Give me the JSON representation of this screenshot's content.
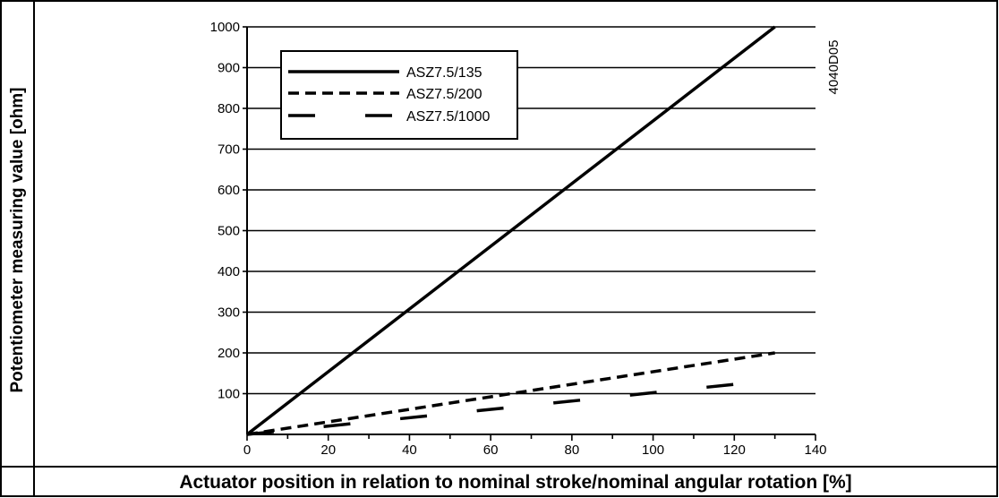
{
  "chart_data": {
    "type": "line",
    "title": "",
    "xlabel": "Actuator position in relation to nominal stroke/nominal angular rotation [%]",
    "ylabel": "Potentiometer measuring value [ohm]",
    "figure_code": "4040D05",
    "xlim": [
      0,
      140
    ],
    "ylim": [
      0,
      1000
    ],
    "x_ticks": [
      0,
      20,
      40,
      60,
      80,
      100,
      120,
      140
    ],
    "y_ticks": [
      100,
      200,
      300,
      400,
      500,
      600,
      700,
      800,
      900,
      1000
    ],
    "x_tick_labels": [
      "0",
      "20",
      "40",
      "60",
      "80",
      "100",
      "120",
      "140"
    ],
    "y_tick_labels": [
      "100",
      "200",
      "300",
      "400",
      "500",
      "600",
      "700",
      "800",
      "900",
      "1000"
    ],
    "grid": "horizontal",
    "legend_position": "top-left",
    "series": [
      {
        "name": "ASZ7.5/135",
        "style": "solid",
        "x": [
          0,
          130
        ],
        "y": [
          0,
          1000
        ]
      },
      {
        "name": "ASZ7.5/200",
        "style": "dashed",
        "x": [
          0,
          130
        ],
        "y": [
          0,
          200
        ]
      },
      {
        "name": "ASZ7.5/1000",
        "style": "long-dash",
        "x": [
          0,
          130
        ],
        "y": [
          0,
          133
        ]
      }
    ],
    "colors": {
      "line": "#000000",
      "grid": "#000000",
      "background": "#ffffff"
    }
  }
}
